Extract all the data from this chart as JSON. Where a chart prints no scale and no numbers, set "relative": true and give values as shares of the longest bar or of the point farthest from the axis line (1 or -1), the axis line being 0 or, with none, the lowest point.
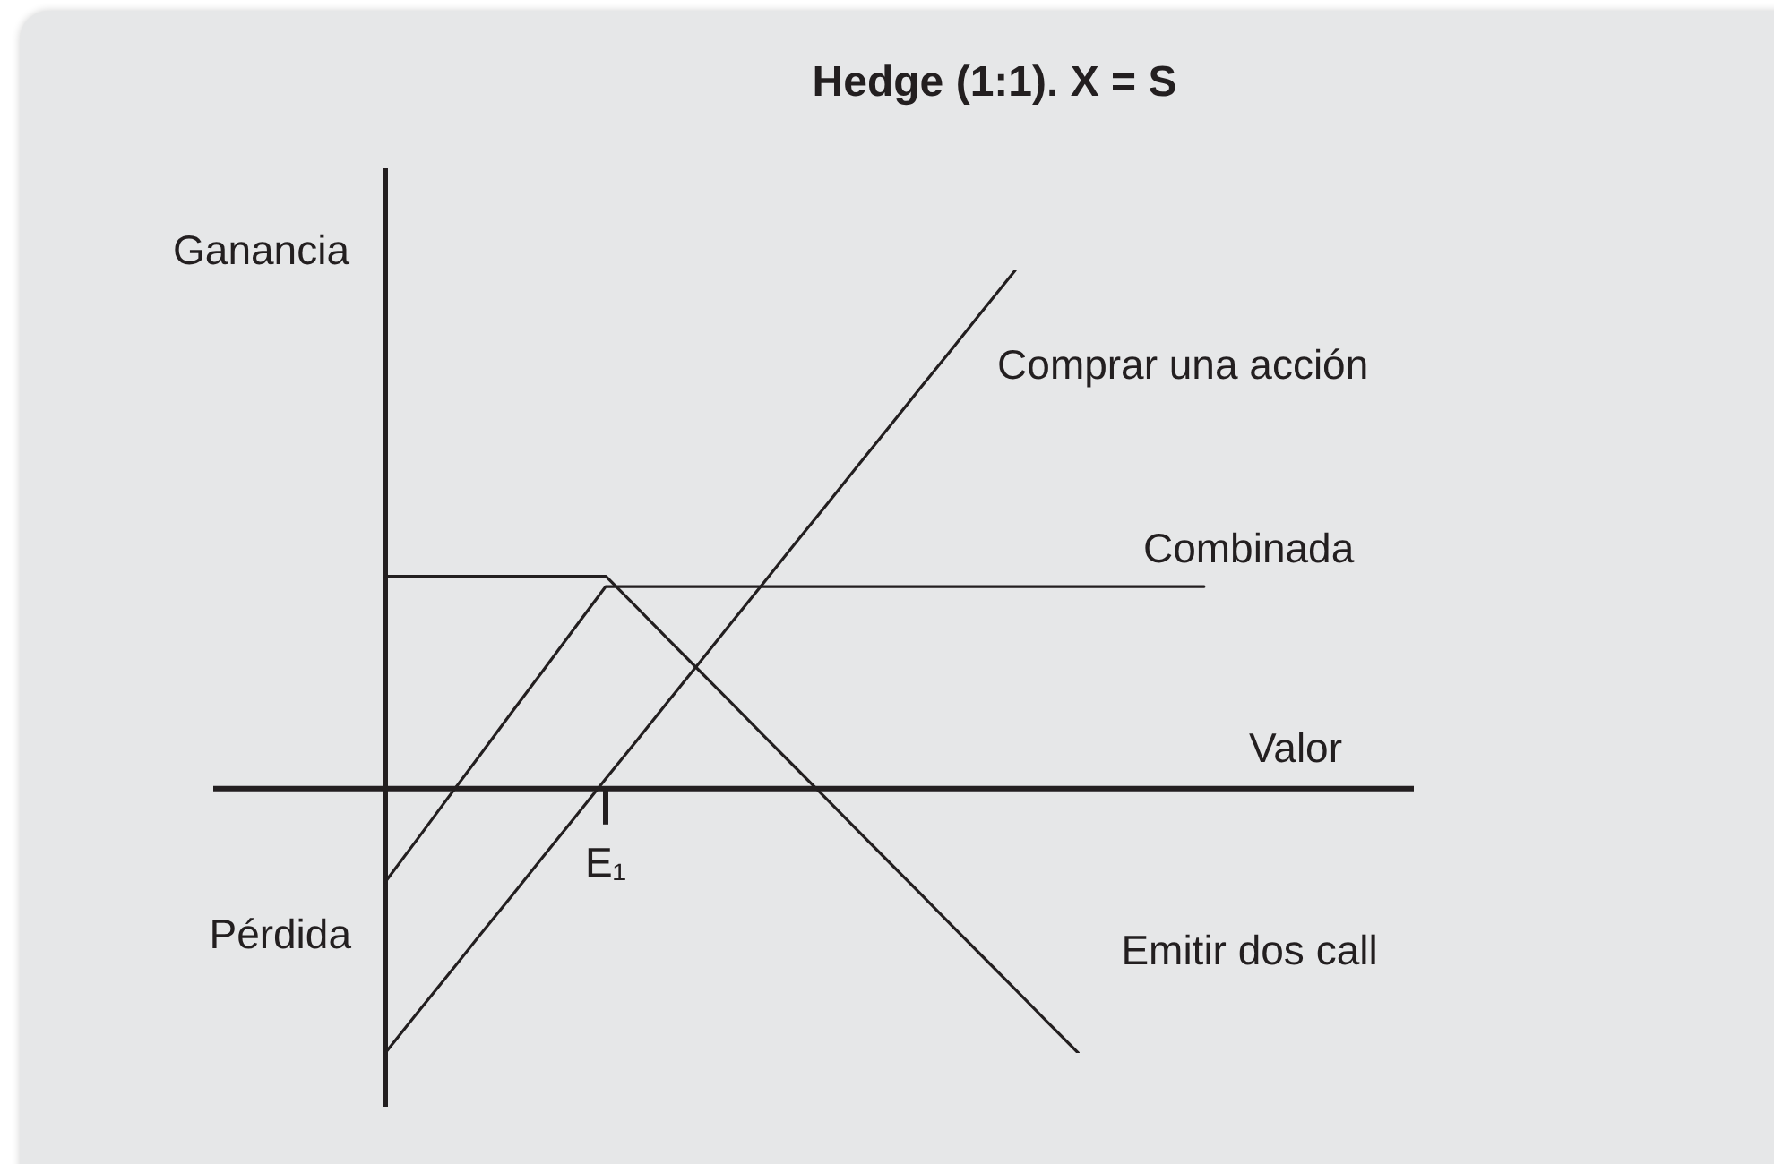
{
  "chart_data": {
    "type": "line",
    "title": "Hedge (1:1). X = S",
    "xlabel": "Valor",
    "relative": true,
    "annotations": [
      "Ganancia",
      "Pérdida",
      "E₁"
    ],
    "categories": [
      null,
      null,
      null,
      null,
      null,
      null,
      null,
      null,
      null,
      null,
      null,
      null,
      null,
      null,
      null,
      null,
      null,
      null,
      null,
      null,
      null,
      null,
      null,
      null,
      null,
      null,
      null
    ],
    "series": [
      {
        "name": "Comprar una acción",
        "color": "#231f20",
        "values": [
          -0.51,
          -0.434,
          -0.359,
          -0.283,
          -0.208,
          -0.132,
          -0.057,
          0.019,
          0.094,
          0.17,
          0.245,
          0.321,
          0.396,
          0.472,
          0.547,
          0.623,
          0.698,
          0.774,
          0.849,
          0.925,
          1,
          null,
          null,
          null,
          null,
          null,
          null
        ]
      },
      {
        "name": "Combinada",
        "color": "#231f20",
        "values": [
          -0.18,
          -0.099,
          -0.017,
          0.064,
          0.146,
          0.227,
          0.309,
          0.39,
          0.39,
          0.39,
          0.39,
          0.39,
          0.39,
          0.39,
          0.39,
          0.39,
          0.39,
          0.39,
          0.39,
          0.39,
          0.39,
          0.39,
          0.39,
          0.39,
          0.39,
          0.39,
          0.39
        ]
      },
      {
        "name": "Emitir dos call",
        "color": "#231f20",
        "values": [
          0.41,
          0.41,
          0.41,
          0.41,
          0.41,
          0.41,
          0.41,
          0.41,
          0.349,
          0.287,
          0.226,
          0.165,
          0.103,
          0.042,
          -0.019,
          -0.081,
          -0.142,
          -0.203,
          -0.265,
          -0.326,
          -0.387,
          -0.449,
          -0.51,
          null,
          null,
          null,
          null
        ]
      }
    ]
  }
}
